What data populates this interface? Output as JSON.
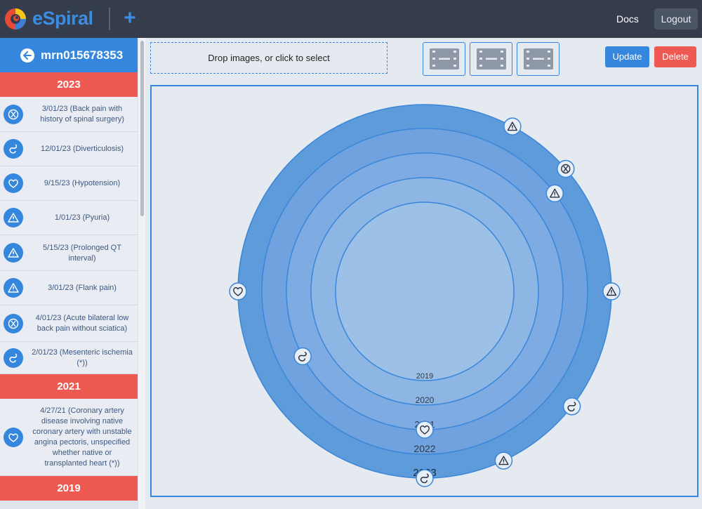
{
  "navbar": {
    "brand": "eSpiral",
    "plus_label": "+",
    "docs_label": "Docs",
    "logout_label": "Logout"
  },
  "patient": {
    "id": "mrn015678353"
  },
  "timeline": [
    {
      "year": "2023",
      "events": [
        {
          "text": "3/01/23 (Back pain with history of spinal surgery)",
          "icon": "spine-icon"
        },
        {
          "text": "12/01/23 (Diverticulosis)",
          "icon": "intestine-icon"
        },
        {
          "text": "9/15/23 (Hypotension)",
          "icon": "heart-icon"
        },
        {
          "text": "1/01/23 (Pyuria)",
          "icon": "warning-icon"
        },
        {
          "text": "5/15/23 (Prolonged QT interval)",
          "icon": "warning-icon"
        },
        {
          "text": "3/01/23 (Flank pain)",
          "icon": "warning-icon"
        },
        {
          "text": "4/01/23 (Acute bilateral low back pain without sciatica)",
          "icon": "spine-icon"
        },
        {
          "text": "2/01/23 (Mesenteric ischemia (*))",
          "icon": "intestine-icon"
        }
      ]
    },
    {
      "year": "2021",
      "events": [
        {
          "text": "4/27/21 (Coronary artery disease involving native coronary artery with unstable angina pectoris, unspecified whether native or transplanted heart (*))",
          "icon": "heart-icon"
        }
      ]
    },
    {
      "year": "2019",
      "events": []
    }
  ],
  "toolbar": {
    "dropzone_label": "Drop images, or click to select",
    "film_buttons": [
      "film-icon",
      "film-icon",
      "film-icon"
    ],
    "update_label": "Update",
    "delete_label": "Delete"
  },
  "spiral": {
    "ring_labels": [
      "2019",
      "2020",
      "2021",
      "2022",
      "2023"
    ],
    "ring_colors": [
      "#9dc0e7",
      "#8db6e5",
      "#7eace2",
      "#6fa2df",
      "#5e9bda"
    ],
    "markers": [
      {
        "icon": "warning-icon",
        "ring": "2023",
        "angle_deg": 62
      },
      {
        "icon": "spine-icon",
        "ring": "2023",
        "angle_deg": 41
      },
      {
        "icon": "warning-icon",
        "ring": "2022",
        "angle_deg": 37
      },
      {
        "icon": "warning-icon",
        "ring": "2023",
        "angle_deg": 0
      },
      {
        "icon": "heart-icon",
        "ring": "2023",
        "angle_deg": 180
      },
      {
        "icon": "intestine-icon",
        "ring": "2021",
        "angle_deg": 208
      },
      {
        "icon": "intestine-icon",
        "ring": "2023",
        "angle_deg": -38
      },
      {
        "icon": "heart-icon",
        "ring": "2021",
        "angle_deg": -90
      },
      {
        "icon": "warning-icon",
        "ring": "2023",
        "angle_deg": -65
      },
      {
        "icon": "intestine-icon",
        "ring": "2023",
        "angle_deg": -90
      }
    ]
  }
}
